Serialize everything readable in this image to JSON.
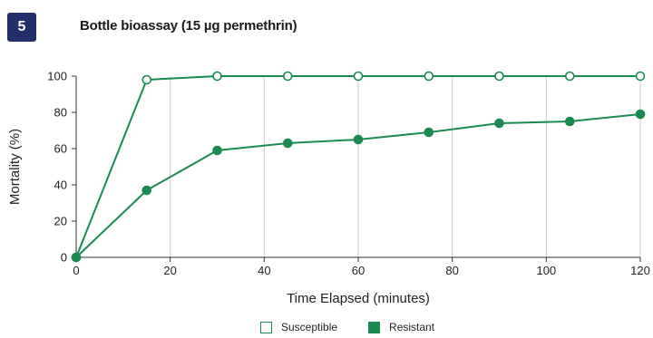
{
  "figure": {
    "number": "5",
    "title": "Bottle bioassay (15 µg permethrin)"
  },
  "chart_data": {
    "type": "line",
    "xlabel": "Time Elapsed (minutes)",
    "ylabel": "Mortality (%)",
    "xlim": [
      0,
      120
    ],
    "ylim": [
      0,
      100
    ],
    "xticks": [
      0,
      20,
      40,
      60,
      80,
      100,
      120
    ],
    "yticks": [
      0,
      20,
      40,
      60,
      80,
      100
    ],
    "grid": "vertical",
    "legend_position": "bottom",
    "series": [
      {
        "name": "Susceptible",
        "marker": "open-circle",
        "color": "#1a8a50",
        "x": [
          0,
          15,
          30,
          45,
          60,
          75,
          90,
          105,
          120
        ],
        "y": [
          0,
          98,
          100,
          100,
          100,
          100,
          100,
          100,
          100
        ]
      },
      {
        "name": "Resistant",
        "marker": "filled-circle",
        "color": "#1a8a50",
        "x": [
          0,
          15,
          30,
          45,
          60,
          75,
          90,
          105,
          120
        ],
        "y": [
          0,
          37,
          59,
          63,
          65,
          69,
          74,
          75,
          79
        ]
      }
    ]
  }
}
